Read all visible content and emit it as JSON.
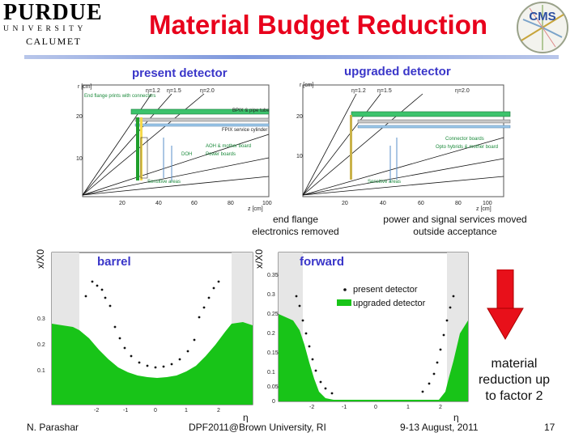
{
  "header": {
    "title": "Material Budget Reduction",
    "purdue": {
      "line1": "PURDUE",
      "line2": "UNIVERSITY",
      "line3": "CALUMET"
    },
    "cms_logo_text": "CMS"
  },
  "detectors": {
    "present_label": "present detector",
    "upgraded_label": "upgraded detector",
    "present": {
      "y_axis_label": "r [cm]",
      "y_ticks": [
        "20",
        "10"
      ],
      "x_ticks": [
        "20",
        "40",
        "60",
        "80",
        "100"
      ],
      "x_axis_label": "z [cm]",
      "eta_labels": [
        "η=1.2",
        "η=1.5",
        "η=2.0"
      ],
      "annotations": [
        "End flange prints with connectors",
        "BPIX & pipe tube",
        "FPIX service cylinder",
        "AOH & mother board",
        "DOH",
        "Power boards",
        "Sensitive areas"
      ]
    },
    "upgraded": {
      "y_axis_label": "r [cm]",
      "y_ticks": [
        "20",
        "10"
      ],
      "x_ticks": [
        "20",
        "40",
        "60",
        "80",
        "100"
      ],
      "x_axis_label": "z [cm]",
      "eta_labels": [
        "η=1.2",
        "η=1.5",
        "η=2.0"
      ],
      "annotations": [
        "Connector boards",
        "Opto hybrids & mother board",
        "Sensitive areas"
      ]
    },
    "caption_left": [
      "end flange",
      "electronics removed"
    ],
    "caption_right": [
      "power and signal services moved",
      "outside acceptance"
    ]
  },
  "plots": {
    "y_axis_label": "x/X0",
    "x_axis_label": "η",
    "barrel": {
      "label": "barrel",
      "y_ticks": [
        "0.3",
        "0.2",
        "0.1"
      ],
      "x_ticks": [
        "-2",
        "-1",
        "0",
        "1",
        "2"
      ]
    },
    "forward": {
      "label": "forward",
      "y_ticks": [
        "0.35",
        "0.3",
        "0.25",
        "0.2",
        "0.15",
        "0.1",
        "0.05",
        "0"
      ],
      "x_ticks": [
        "-2",
        "-1",
        "0",
        "1",
        "2"
      ]
    },
    "legend": {
      "present": "present detector",
      "upgraded": "upgraded detector"
    }
  },
  "note": [
    "material",
    "reduction up",
    "to factor 2"
  ],
  "footer": {
    "author": "N. Parashar",
    "conference": "DPF2011@Brown University, RI",
    "date": "9-13 August, 2011",
    "page": "17"
  },
  "colors": {
    "title": "#e8001c",
    "section_label": "#3a36c9",
    "green_fill": "#18c418",
    "arrow": "#e8101a"
  }
}
